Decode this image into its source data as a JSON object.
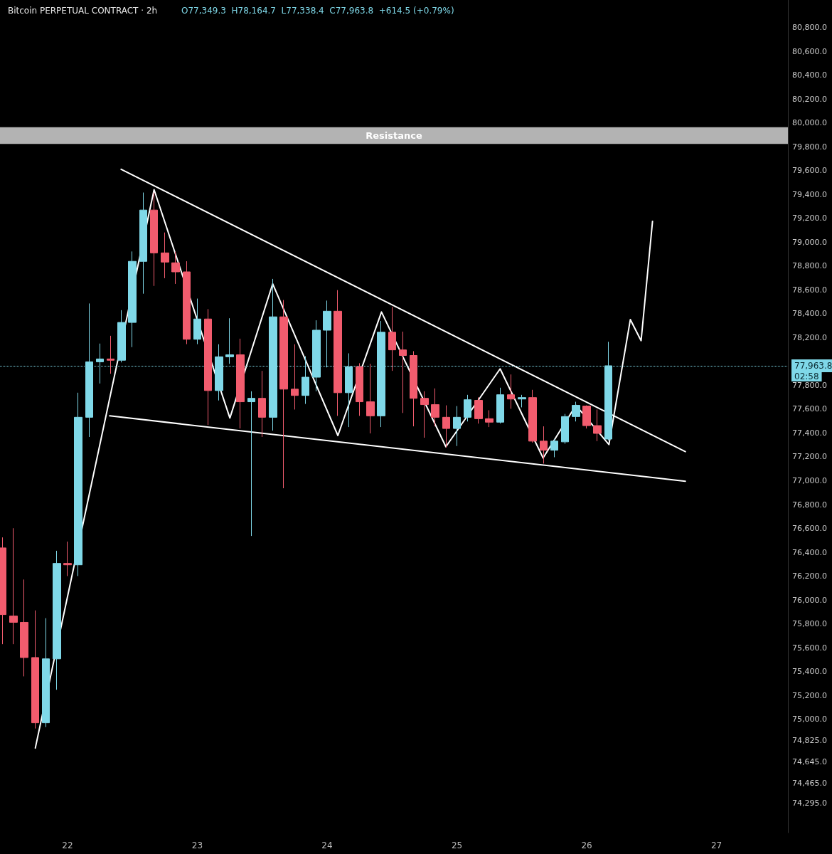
{
  "chart_data": {
    "type": "candlestick",
    "title": "Bitcoin PERPETUAL CONTRACT · 2h",
    "subtitle": "O77,349.3  H78,164.7  L77,338.4  C77,963.8  +614.5 (+0.79%)",
    "xlim": [
      21.48,
      27.55
    ],
    "xticks": [
      22,
      23,
      24,
      25,
      26,
      27
    ],
    "ylim": [
      74050,
      81030
    ],
    "yticks": [
      {
        "value": 74295,
        "label": "74,295.0"
      },
      {
        "value": 74465,
        "label": "74,465.0"
      },
      {
        "value": 74645,
        "label": "74,645.0"
      },
      {
        "value": 74825,
        "label": "74,825.0"
      },
      {
        "value": 75000,
        "label": "75,000.0"
      },
      {
        "value": 75200,
        "label": "75,200.0"
      },
      {
        "value": 75400,
        "label": "75,400.0"
      },
      {
        "value": 75600,
        "label": "75,600.0"
      },
      {
        "value": 75800,
        "label": "75,800.0"
      },
      {
        "value": 76000,
        "label": "76,000.0"
      },
      {
        "value": 76200,
        "label": "76,200.0"
      },
      {
        "value": 76400,
        "label": "76,400.0"
      },
      {
        "value": 76600,
        "label": "76,600.0"
      },
      {
        "value": 76800,
        "label": "76,800.0"
      },
      {
        "value": 77000,
        "label": "77,000.0"
      },
      {
        "value": 77200,
        "label": "77,200.0"
      },
      {
        "value": 77400,
        "label": "77,400.0"
      },
      {
        "value": 77600,
        "label": "77,600.0"
      },
      {
        "value": 77800,
        "label": "77,800.0"
      },
      {
        "value": 78200,
        "label": "78,200.0"
      },
      {
        "value": 78400,
        "label": "78,400.0"
      },
      {
        "value": 78600,
        "label": "78,600.0"
      },
      {
        "value": 78800,
        "label": "78,800.0"
      },
      {
        "value": 79000,
        "label": "79,000.0"
      },
      {
        "value": 79200,
        "label": "79,200.0"
      },
      {
        "value": 79400,
        "label": "79,400.0"
      },
      {
        "value": 79600,
        "label": "79,600.0"
      },
      {
        "value": 79800,
        "label": "79,800.0"
      },
      {
        "value": 80000,
        "label": "80,000.0"
      },
      {
        "value": 80200,
        "label": "80,200.0"
      },
      {
        "value": 80400,
        "label": "80,400.0"
      },
      {
        "value": 80600,
        "label": "80,600.0"
      },
      {
        "value": 80800,
        "label": "80,800.0"
      }
    ],
    "grid": false,
    "series": [
      {
        "x": [
          21.5,
          21.583,
          21.667,
          21.75,
          21.833,
          21.917,
          22,
          22.083,
          22.167,
          22.25,
          22.333,
          22.417,
          22.5,
          22.583,
          22.667,
          22.75,
          22.833,
          22.917,
          23,
          23.083,
          23.167,
          23.25,
          23.333,
          23.417,
          23.5,
          23.583,
          23.667,
          23.75,
          23.833,
          23.917,
          24,
          24.083,
          24.167,
          24.25,
          24.333,
          24.417,
          24.5,
          24.583,
          24.667,
          24.75,
          24.833,
          24.917,
          25,
          25.083,
          25.167,
          25.25,
          25.333,
          25.417,
          25.5,
          25.583,
          25.667,
          25.75,
          25.833,
          25.917,
          26,
          26.083,
          26.167
        ],
        "ohlc": [
          [
            76437,
            76525,
            75630,
            75878
          ],
          [
            75866,
            76602,
            75630,
            75813
          ],
          [
            75813,
            76172,
            75360,
            75518
          ],
          [
            75518,
            75913,
            74923,
            74971
          ],
          [
            74971,
            75848,
            74935,
            75507
          ],
          [
            75507,
            76413,
            75248,
            76307
          ],
          [
            76307,
            76490,
            76201,
            76295
          ],
          [
            76295,
            77738,
            76201,
            77532
          ],
          [
            77532,
            78486,
            77367,
            77997
          ],
          [
            77997,
            78150,
            77815,
            78021
          ],
          [
            78021,
            78215,
            77897,
            78010
          ],
          [
            78010,
            78430,
            77992,
            78327
          ],
          [
            78327,
            78922,
            78120,
            78839
          ],
          [
            78839,
            79416,
            78568,
            79269
          ],
          [
            79269,
            79416,
            78633,
            78910
          ],
          [
            78910,
            79081,
            78698,
            78833
          ],
          [
            78827,
            78920,
            78650,
            78751
          ],
          [
            78751,
            78840,
            78145,
            78186
          ],
          [
            78186,
            78527,
            78145,
            78356
          ],
          [
            78356,
            78439,
            77467,
            77756
          ],
          [
            77756,
            78144,
            77673,
            78039
          ],
          [
            78039,
            78362,
            77980,
            78056
          ],
          [
            78056,
            78191,
            77438,
            77662
          ],
          [
            77662,
            77750,
            76537,
            77691
          ],
          [
            77691,
            77921,
            77367,
            77532
          ],
          [
            77532,
            78692,
            77420,
            78374
          ],
          [
            78374,
            78515,
            76937,
            77768
          ],
          [
            77768,
            78144,
            77597,
            77715
          ],
          [
            77715,
            78044,
            77644,
            77868
          ],
          [
            77868,
            78345,
            77750,
            78262
          ],
          [
            78262,
            78510,
            77950,
            78421
          ],
          [
            78421,
            78598,
            77544,
            77738
          ],
          [
            77738,
            78068,
            77450,
            77956
          ],
          [
            77956,
            77985,
            77544,
            77662
          ],
          [
            77662,
            77980,
            77397,
            77544
          ],
          [
            77544,
            78339,
            77450,
            78245
          ],
          [
            78245,
            78457,
            77921,
            78097
          ],
          [
            78097,
            78250,
            77568,
            78050
          ],
          [
            78050,
            78086,
            77456,
            77691
          ],
          [
            77691,
            77750,
            77361,
            77638
          ],
          [
            77638,
            77774,
            77456,
            77532
          ],
          [
            77532,
            77632,
            77279,
            77438
          ],
          [
            77438,
            77626,
            77291,
            77532
          ],
          [
            77532,
            77720,
            77497,
            77679
          ],
          [
            77674,
            77700,
            77479,
            77520
          ],
          [
            77520,
            77591,
            77450,
            77491
          ],
          [
            77491,
            77780,
            77480,
            77721
          ],
          [
            77721,
            77891,
            77603,
            77685
          ],
          [
            77685,
            77720,
            77615,
            77697
          ],
          [
            77697,
            77762,
            77320,
            77332
          ],
          [
            77332,
            77456,
            77144,
            77256
          ],
          [
            77256,
            77350,
            77197,
            77332
          ],
          [
            77326,
            77560,
            77310,
            77538
          ],
          [
            77538,
            77662,
            77497,
            77632
          ],
          [
            77626,
            77632,
            77438,
            77462
          ],
          [
            77462,
            77597,
            77332,
            77397
          ],
          [
            77349.3,
            78164.7,
            77338.4,
            77963.8
          ]
        ],
        "colors": [
          "#f25c6e",
          "#f25c6e",
          "#f25c6e",
          "#f25c6e",
          "#7fd8e8",
          "#7fd8e8",
          "#f25c6e",
          "#7fd8e8",
          "#7fd8e8",
          "#7fd8e8",
          "#f25c6e",
          "#7fd8e8",
          "#7fd8e8",
          "#7fd8e8",
          "#f25c6e",
          "#f25c6e",
          "#f25c6e",
          "#f25c6e",
          "#7fd8e8",
          "#f25c6e",
          "#7fd8e8",
          "#7fd8e8",
          "#f25c6e",
          "#7fd8e8",
          "#f25c6e",
          "#7fd8e8",
          "#f25c6e",
          "#f25c6e",
          "#7fd8e8",
          "#7fd8e8",
          "#7fd8e8",
          "#f25c6e",
          "#7fd8e8",
          "#f25c6e",
          "#f25c6e",
          "#7fd8e8",
          "#f25c6e",
          "#f25c6e",
          "#f25c6e",
          "#f25c6e",
          "#f25c6e",
          "#f25c6e",
          "#7fd8e8",
          "#7fd8e8",
          "#f25c6e",
          "#f25c6e",
          "#7fd8e8",
          "#f25c6e",
          "#7fd8e8",
          "#f25c6e",
          "#f25c6e",
          "#7fd8e8",
          "#7fd8e8",
          "#7fd8e8",
          "#f25c6e",
          "#f25c6e",
          "#7fd8e8"
        ]
      },
      {
        "type": "line",
        "color": "#ffffff",
        "x": [
          21.752,
          22.667,
          23.251,
          23.581,
          24.083,
          24.419,
          24.915,
          25.333,
          25.664,
          25.917,
          26.171,
          26.336,
          26.419,
          26.507
        ],
        "values": [
          74759,
          79440,
          77526,
          78651,
          77379,
          78415,
          77285,
          77938,
          77191,
          77632,
          77303,
          78351,
          78174,
          79175
        ]
      },
      {
        "type": "line",
        "color": "#ffffff",
        "x": [
          22.413,
          26.76
        ],
        "values": [
          79611,
          77244
        ]
      },
      {
        "type": "line",
        "color": "#ffffff",
        "x": [
          22.325,
          26.76
        ],
        "values": [
          77544,
          76996
        ]
      }
    ],
    "ref_lines": [
      {
        "axis": "y",
        "value": 77963.8,
        "label": "77,963.8",
        "color": "#7fd8e8",
        "line_style": "dotted"
      }
    ],
    "bands": [
      {
        "axis": "y",
        "from": 79823,
        "to": 79964,
        "label": "Resistance",
        "color": "#b3b3b3"
      }
    ],
    "annotations": [
      "02:58"
    ]
  }
}
